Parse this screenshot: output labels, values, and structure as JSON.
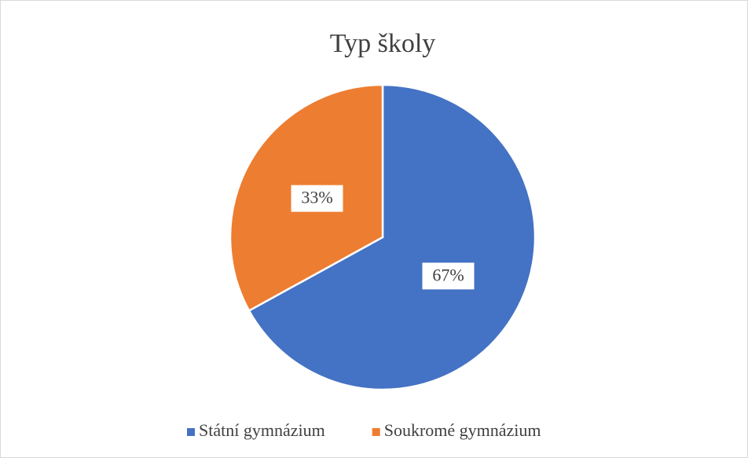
{
  "chart_data": {
    "type": "pie",
    "title": "Typ školy",
    "categories": [
      "Státní gymnázium",
      "Soukromé gymnázium"
    ],
    "values": [
      67,
      33
    ],
    "value_labels": [
      "67%",
      "33%"
    ],
    "colors": [
      "#4472c4",
      "#ed7d31"
    ],
    "legend": "bottom"
  }
}
